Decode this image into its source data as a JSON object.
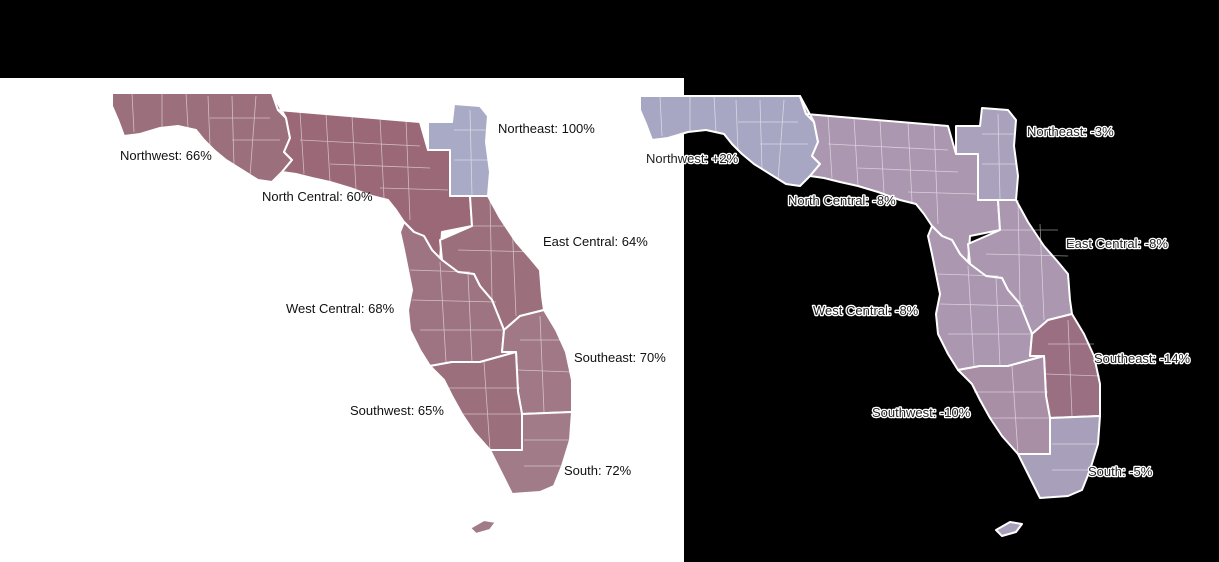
{
  "maps": [
    {
      "id": "left",
      "background": "#ffffff",
      "regions": [
        {
          "key": "northwest",
          "label": "Northwest: 66%",
          "value": 66,
          "color": "#9c6f7d"
        },
        {
          "key": "north_central",
          "label": "North Central: 60%",
          "value": 60,
          "color": "#9a6877"
        },
        {
          "key": "northeast",
          "label": "Northeast: 100%",
          "value": 100,
          "color": "#a9abc6"
        },
        {
          "key": "east_central",
          "label": "East Central: 64%",
          "value": 64,
          "color": "#9c6f7d"
        },
        {
          "key": "west_central",
          "label": "West Central: 68%",
          "value": 68,
          "color": "#9e7482"
        },
        {
          "key": "southeast",
          "label": "Southeast: 70%",
          "value": 70,
          "color": "#a07886"
        },
        {
          "key": "southwest",
          "label": "Southwest: 65%",
          "value": 65,
          "color": "#9c6f7d"
        },
        {
          "key": "south",
          "label": "South: 72%",
          "value": 72,
          "color": "#a17b88"
        }
      ]
    },
    {
      "id": "right",
      "background": "#000000",
      "regions": [
        {
          "key": "northwest",
          "label": "Northwest: +2%",
          "value": 2,
          "color": "#a7a7c3"
        },
        {
          "key": "north_central",
          "label": "North Central: -8%",
          "value": -8,
          "color": "#ab97b0"
        },
        {
          "key": "northeast",
          "label": "Northeast: -3%",
          "value": -3,
          "color": "#aaa2bd"
        },
        {
          "key": "east_central",
          "label": "East Central: -8%",
          "value": -8,
          "color": "#ab97b0"
        },
        {
          "key": "west_central",
          "label": "West Central: -8%",
          "value": -8,
          "color": "#ab97b0"
        },
        {
          "key": "southeast",
          "label": "Southeast: -14%",
          "value": -14,
          "color": "#9b6f82"
        },
        {
          "key": "southwest",
          "label": "Southwest: -10%",
          "value": -10,
          "color": "#a98fa6"
        },
        {
          "key": "south",
          "label": "South: -5%",
          "value": -5,
          "color": "#a8a0bb"
        }
      ]
    }
  ]
}
